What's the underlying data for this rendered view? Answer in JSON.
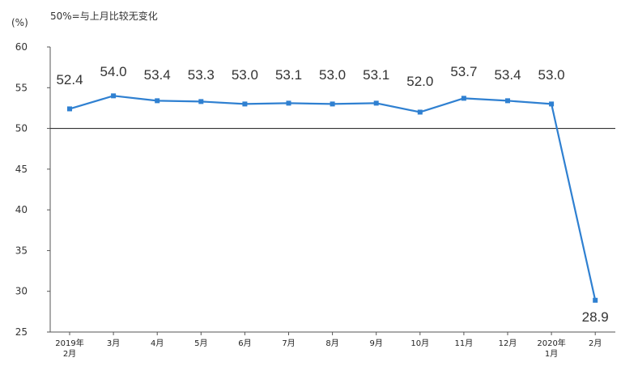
{
  "chart_data": {
    "type": "line",
    "unit_label": "(%)",
    "note": "50%=与上月比较无变化",
    "categories": [
      [
        "2019年",
        "2月"
      ],
      [
        "3月"
      ],
      [
        "4月"
      ],
      [
        "5月"
      ],
      [
        "6月"
      ],
      [
        "7月"
      ],
      [
        "8月"
      ],
      [
        "9月"
      ],
      [
        "10月"
      ],
      [
        "11月"
      ],
      [
        "12月"
      ],
      [
        "2020年",
        "1月"
      ],
      [
        "2月"
      ]
    ],
    "series": [
      {
        "values": [
          52.4,
          54.0,
          53.4,
          53.3,
          53.0,
          53.1,
          53.0,
          53.1,
          52.0,
          53.7,
          53.4,
          53.0,
          28.9
        ],
        "labels": [
          "52.4",
          "54.0",
          "53.4",
          "53.3",
          "53.0",
          "53.1",
          "53.0",
          "53.1",
          "52.0",
          "53.7",
          "53.4",
          "53.0",
          "28.9"
        ],
        "color": "#2f80d1"
      }
    ],
    "ylim": [
      25,
      60
    ],
    "yticks": [
      25,
      30,
      35,
      40,
      45,
      50,
      55,
      60
    ],
    "reference_line": 50,
    "grid": false,
    "legend": "none"
  }
}
